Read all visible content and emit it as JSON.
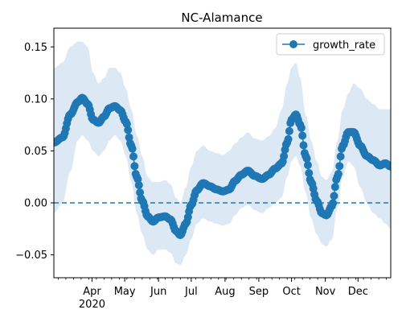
{
  "chart_data": {
    "type": "line",
    "title": "NC-Alamance",
    "xlabel": "",
    "ylabel": "",
    "x_axis": {
      "type": "date",
      "range": [
        "2020-02-26",
        "2020-12-31"
      ],
      "tick_labels": [
        {
          "date": "2020-04-01",
          "label": "Apr",
          "sublabel": "2020"
        },
        {
          "date": "2020-05-01",
          "label": "May"
        },
        {
          "date": "2020-06-01",
          "label": "Jun"
        },
        {
          "date": "2020-07-01",
          "label": "Jul"
        },
        {
          "date": "2020-08-01",
          "label": "Aug"
        },
        {
          "date": "2020-09-01",
          "label": "Sep"
        },
        {
          "date": "2020-10-01",
          "label": "Oct"
        },
        {
          "date": "2020-11-01",
          "label": "Nov"
        },
        {
          "date": "2020-12-01",
          "label": "Dec"
        }
      ]
    },
    "y_axis": {
      "range": [
        -0.072,
        0.168
      ],
      "ticks": [
        -0.05,
        0.0,
        0.05,
        0.1,
        0.15
      ],
      "tick_labels": [
        "−0.05",
        "0.00",
        "0.05",
        "0.10",
        "0.15"
      ]
    },
    "reference_line": {
      "y": 0.0,
      "style": "dashed",
      "color": "#1f77b4"
    },
    "legend": {
      "position": "top-right",
      "entries": [
        "growth_rate"
      ]
    },
    "series": [
      {
        "name": "growth_rate",
        "color": "#1f77b4",
        "band_color": "#dce9f5",
        "keyframes": [
          {
            "date": "2020-02-26",
            "y": 0.058,
            "lo": -0.01,
            "hi": 0.13
          },
          {
            "date": "2020-03-05",
            "y": 0.063,
            "lo": 0.0,
            "hi": 0.135
          },
          {
            "date": "2020-03-12",
            "y": 0.085,
            "lo": 0.03,
            "hi": 0.15
          },
          {
            "date": "2020-03-19",
            "y": 0.097,
            "lo": 0.06,
            "hi": 0.155
          },
          {
            "date": "2020-03-23",
            "y": 0.101,
            "lo": 0.065,
            "hi": 0.155
          },
          {
            "date": "2020-03-28",
            "y": 0.095,
            "lo": 0.06,
            "hi": 0.15
          },
          {
            "date": "2020-04-02",
            "y": 0.08,
            "lo": 0.05,
            "hi": 0.125
          },
          {
            "date": "2020-04-07",
            "y": 0.077,
            "lo": 0.045,
            "hi": 0.115
          },
          {
            "date": "2020-04-12",
            "y": 0.083,
            "lo": 0.05,
            "hi": 0.12
          },
          {
            "date": "2020-04-17",
            "y": 0.091,
            "lo": 0.06,
            "hi": 0.13
          },
          {
            "date": "2020-04-22",
            "y": 0.093,
            "lo": 0.065,
            "hi": 0.13
          },
          {
            "date": "2020-04-27",
            "y": 0.089,
            "lo": 0.06,
            "hi": 0.125
          },
          {
            "date": "2020-05-02",
            "y": 0.078,
            "lo": 0.045,
            "hi": 0.11
          },
          {
            "date": "2020-05-07",
            "y": 0.055,
            "lo": 0.02,
            "hi": 0.09
          },
          {
            "date": "2020-05-12",
            "y": 0.025,
            "lo": -0.01,
            "hi": 0.065
          },
          {
            "date": "2020-05-17",
            "y": 0.002,
            "lo": -0.03,
            "hi": 0.045
          },
          {
            "date": "2020-05-22",
            "y": -0.013,
            "lo": -0.045,
            "hi": 0.025
          },
          {
            "date": "2020-05-27",
            "y": -0.018,
            "lo": -0.05,
            "hi": 0.02
          },
          {
            "date": "2020-06-01",
            "y": -0.014,
            "lo": -0.045,
            "hi": 0.02
          },
          {
            "date": "2020-06-07",
            "y": -0.013,
            "lo": -0.045,
            "hi": 0.022
          },
          {
            "date": "2020-06-12",
            "y": -0.016,
            "lo": -0.048,
            "hi": 0.018
          },
          {
            "date": "2020-06-17",
            "y": -0.027,
            "lo": -0.058,
            "hi": 0.005
          },
          {
            "date": "2020-06-21",
            "y": -0.031,
            "lo": -0.06,
            "hi": 0.0
          },
          {
            "date": "2020-06-26",
            "y": -0.02,
            "lo": -0.05,
            "hi": 0.015
          },
          {
            "date": "2020-07-01",
            "y": -0.002,
            "lo": -0.035,
            "hi": 0.035
          },
          {
            "date": "2020-07-06",
            "y": 0.012,
            "lo": -0.02,
            "hi": 0.05
          },
          {
            "date": "2020-07-12",
            "y": 0.019,
            "lo": -0.015,
            "hi": 0.055
          },
          {
            "date": "2020-07-18",
            "y": 0.016,
            "lo": -0.018,
            "hi": 0.05
          },
          {
            "date": "2020-07-24",
            "y": 0.013,
            "lo": -0.02,
            "hi": 0.048
          },
          {
            "date": "2020-07-30",
            "y": 0.011,
            "lo": -0.022,
            "hi": 0.046
          },
          {
            "date": "2020-08-05",
            "y": 0.013,
            "lo": -0.02,
            "hi": 0.05
          },
          {
            "date": "2020-08-10",
            "y": 0.021,
            "lo": -0.012,
            "hi": 0.057
          },
          {
            "date": "2020-08-16",
            "y": 0.027,
            "lo": -0.005,
            "hi": 0.063
          },
          {
            "date": "2020-08-22",
            "y": 0.031,
            "lo": -0.002,
            "hi": 0.068
          },
          {
            "date": "2020-08-28",
            "y": 0.026,
            "lo": -0.007,
            "hi": 0.062
          },
          {
            "date": "2020-09-04",
            "y": 0.023,
            "lo": -0.01,
            "hi": 0.06
          },
          {
            "date": "2020-09-10",
            "y": 0.027,
            "lo": -0.005,
            "hi": 0.064
          },
          {
            "date": "2020-09-16",
            "y": 0.033,
            "lo": 0.0,
            "hi": 0.072
          },
          {
            "date": "2020-09-22",
            "y": 0.038,
            "lo": 0.005,
            "hi": 0.09
          },
          {
            "date": "2020-09-27",
            "y": 0.058,
            "lo": 0.025,
            "hi": 0.115
          },
          {
            "date": "2020-10-01",
            "y": 0.08,
            "lo": 0.04,
            "hi": 0.13
          },
          {
            "date": "2020-10-05",
            "y": 0.085,
            "lo": 0.045,
            "hi": 0.135
          },
          {
            "date": "2020-10-09",
            "y": 0.075,
            "lo": 0.035,
            "hi": 0.12
          },
          {
            "date": "2020-10-14",
            "y": 0.045,
            "lo": 0.01,
            "hi": 0.085
          },
          {
            "date": "2020-10-19",
            "y": 0.02,
            "lo": -0.015,
            "hi": 0.06
          },
          {
            "date": "2020-10-24",
            "y": 0.002,
            "lo": -0.03,
            "hi": 0.04
          },
          {
            "date": "2020-10-29",
            "y": -0.01,
            "lo": -0.04,
            "hi": 0.025
          },
          {
            "date": "2020-11-02",
            "y": -0.012,
            "lo": -0.042,
            "hi": 0.022
          },
          {
            "date": "2020-11-07",
            "y": -0.003,
            "lo": -0.035,
            "hi": 0.03
          },
          {
            "date": "2020-11-12",
            "y": 0.025,
            "lo": -0.005,
            "hi": 0.06
          },
          {
            "date": "2020-11-17",
            "y": 0.055,
            "lo": 0.025,
            "hi": 0.09
          },
          {
            "date": "2020-11-22",
            "y": 0.068,
            "lo": 0.04,
            "hi": 0.105
          },
          {
            "date": "2020-11-27",
            "y": 0.068,
            "lo": 0.035,
            "hi": 0.115
          },
          {
            "date": "2020-12-03",
            "y": 0.055,
            "lo": 0.015,
            "hi": 0.11
          },
          {
            "date": "2020-12-09",
            "y": 0.045,
            "lo": 0.0,
            "hi": 0.1
          },
          {
            "date": "2020-12-15",
            "y": 0.041,
            "lo": -0.01,
            "hi": 0.095
          },
          {
            "date": "2020-12-21",
            "y": 0.036,
            "lo": -0.015,
            "hi": 0.09
          },
          {
            "date": "2020-12-26",
            "y": 0.038,
            "lo": -0.02,
            "hi": 0.09
          },
          {
            "date": "2020-12-31",
            "y": 0.035,
            "lo": -0.025,
            "hi": 0.09
          }
        ]
      }
    ]
  }
}
